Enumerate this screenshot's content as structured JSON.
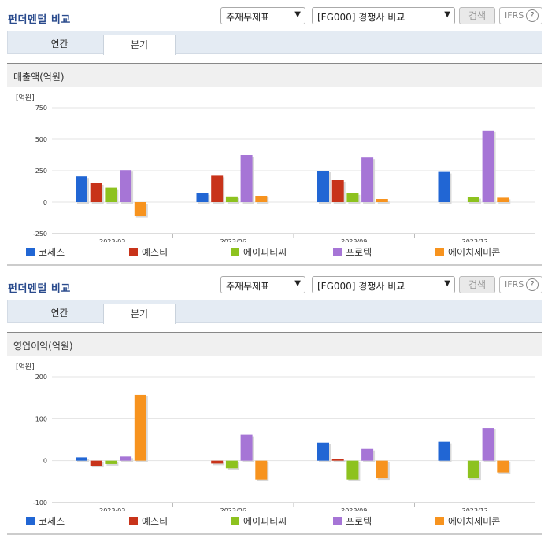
{
  "panels": [
    {
      "title": "펀더멘털 비교",
      "select1": "주재무제표",
      "select2": "[FG000] 경쟁사 비교",
      "search_label": "검색",
      "ifrs_label": "IFRS",
      "ifrs_help": "?",
      "tabs": [
        "연간",
        "분기"
      ],
      "section_label": "매출액(억원)",
      "unit_label": "[억원]"
    },
    {
      "title": "펀더멘털 비교",
      "select1": "주재무제표",
      "select2": "[FG000] 경쟁사 비교",
      "search_label": "검색",
      "ifrs_label": "IFRS",
      "ifrs_help": "?",
      "tabs": [
        "연간",
        "분기"
      ],
      "section_label": "영업이익(억원)",
      "unit_label": "[억원]"
    }
  ],
  "chart_data": [
    {
      "type": "bar",
      "title": "매출액(억원)",
      "ylabel": "[억원]",
      "categories": [
        "2023/03",
        "2023/06",
        "2023/09",
        "2023/12"
      ],
      "ylim": [
        -250,
        750
      ],
      "yticks": [
        750,
        500,
        250,
        0,
        -250
      ],
      "grid": true,
      "legend_position": "bottom",
      "series": [
        {
          "name": "코세스",
          "color": "#2166d4",
          "values": [
            205,
            70,
            250,
            240
          ]
        },
        {
          "name": "예스티",
          "color": "#c8331a",
          "values": [
            150,
            210,
            175,
            null
          ]
        },
        {
          "name": "에이피티씨",
          "color": "#8dc21f",
          "values": [
            115,
            45,
            70,
            40
          ]
        },
        {
          "name": "프로텍",
          "color": "#a675d6",
          "values": [
            255,
            375,
            355,
            570
          ]
        },
        {
          "name": "에이치세미콘",
          "color": "#f7931e",
          "values": [
            -110,
            50,
            25,
            35
          ]
        }
      ]
    },
    {
      "type": "bar",
      "title": "영업이익(억원)",
      "ylabel": "[억원]",
      "categories": [
        "2023/03",
        "2023/06",
        "2023/09",
        "2023/12"
      ],
      "ylim": [
        -100,
        200
      ],
      "yticks": [
        200,
        100,
        0,
        -100
      ],
      "grid": true,
      "legend_position": "bottom",
      "series": [
        {
          "name": "코세스",
          "color": "#2166d4",
          "values": [
            8,
            null,
            43,
            45
          ]
        },
        {
          "name": "예스티",
          "color": "#c8331a",
          "values": [
            -12,
            -7,
            5,
            null
          ]
        },
        {
          "name": "에이피티씨",
          "color": "#8dc21f",
          "values": [
            -8,
            -18,
            -45,
            -42
          ]
        },
        {
          "name": "프로텍",
          "color": "#a675d6",
          "values": [
            10,
            62,
            28,
            78
          ]
        },
        {
          "name": "에이치세미콘",
          "color": "#f7931e",
          "values": [
            157,
            -45,
            -42,
            -28
          ]
        }
      ]
    }
  ]
}
